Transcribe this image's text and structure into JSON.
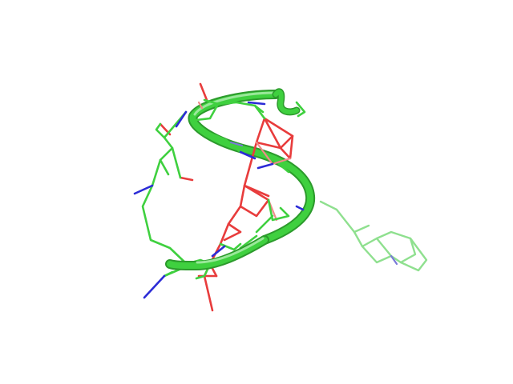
{
  "scene": {
    "type": "molecular-structure-render",
    "background_color": "#ffffff",
    "representations": [
      "cartoon-tube",
      "sticks"
    ],
    "colors": {
      "carbon_green": "#3fd03f",
      "carbon_green_dark": "#2c9a2c",
      "carbon_green_light": "#8fe08f",
      "oxygen_red": "#e83c3c",
      "oxygen_red_light": "#f08a8a",
      "nitrogen_blue": "#2b2bd6",
      "nitrogen_blue_light": "#7a7ad8",
      "highlight": "#9ae89a"
    }
  }
}
